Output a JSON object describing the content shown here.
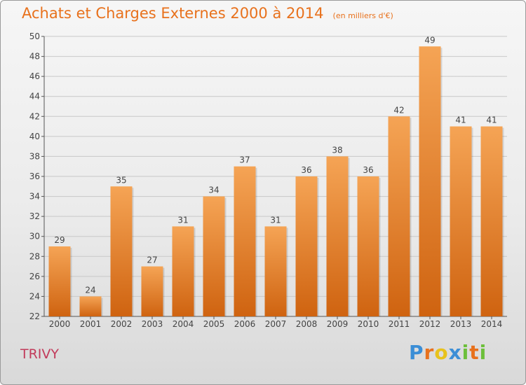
{
  "chart_data": {
    "type": "bar",
    "title": "Achats et Charges Externes 2000 à 2014",
    "subtitle": "(en milliers d'€)",
    "categories": [
      "2000",
      "2001",
      "2002",
      "2003",
      "2004",
      "2005",
      "2006",
      "2007",
      "2008",
      "2009",
      "2010",
      "2011",
      "2012",
      "2013",
      "2014"
    ],
    "values": [
      29,
      24,
      35,
      27,
      31,
      34,
      37,
      31,
      36,
      38,
      36,
      42,
      49,
      41,
      41
    ],
    "ylim": [
      22,
      50
    ],
    "yticks": [
      22,
      24,
      26,
      28,
      30,
      32,
      34,
      36,
      38,
      40,
      42,
      44,
      46,
      48,
      50
    ],
    "grid": true,
    "xlabel": "",
    "ylabel": ""
  },
  "location": "TRIVY",
  "logo": {
    "letters": [
      "P",
      "r",
      "o",
      "x",
      "i",
      "t",
      "i"
    ],
    "colors": [
      "#3b8ed6",
      "#e8711c",
      "#e8c21c",
      "#3b8ed6",
      "#6cbf3a",
      "#e8711c",
      "#6cbf3a"
    ]
  },
  "colors": {
    "accent": "#e8711c",
    "location": "#c23b5b",
    "bar_top": "#f5a455",
    "bar_bottom": "#cf6310",
    "grid": "#c8c8c8"
  }
}
